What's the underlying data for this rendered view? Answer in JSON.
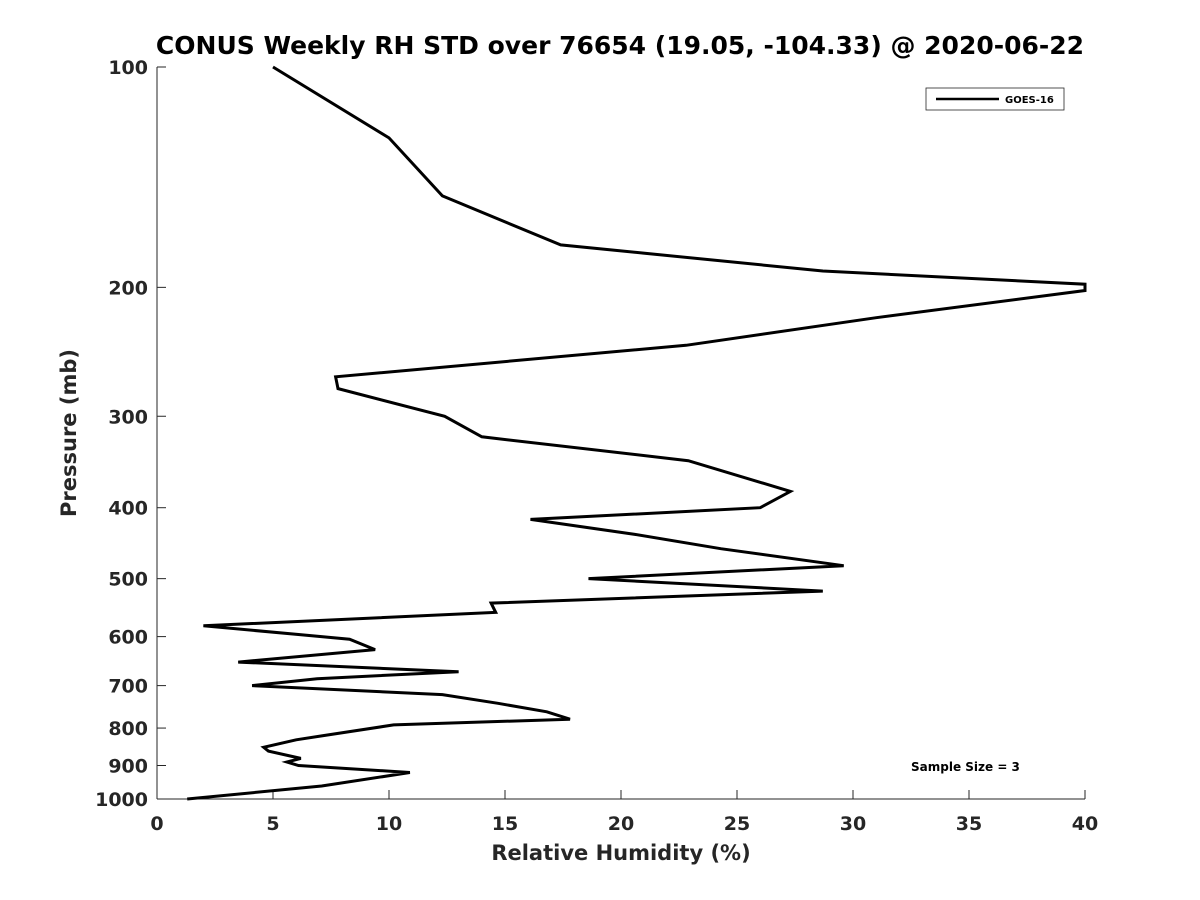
{
  "chart_data": {
    "type": "line",
    "title": "CONUS Weekly RH STD over 76654 (19.05, -104.33) @ 2020-06-22",
    "xlabel": "Relative Humidity (%)",
    "ylabel": "Pressure (mb)",
    "xlim": [
      0,
      40
    ],
    "ylim": [
      100,
      1000
    ],
    "yscale": "log",
    "yreversed": true,
    "xticks": [
      0,
      5,
      10,
      15,
      20,
      25,
      30,
      35,
      40
    ],
    "xtick_labels": [
      "0",
      "5",
      "10",
      "15",
      "20",
      "25",
      "30",
      "35",
      "40"
    ],
    "yticks": [
      100,
      200,
      300,
      400,
      500,
      600,
      700,
      800,
      900,
      1000
    ],
    "ytick_labels": [
      "100",
      "200",
      "300",
      "400",
      "500",
      "600",
      "700",
      "800",
      "900",
      "1000"
    ],
    "legend": {
      "location": "top-right",
      "entries": [
        "GOES-16"
      ]
    },
    "annotation": "Sample Size = 3",
    "series": [
      {
        "name": "GOES-16",
        "color": "#000000",
        "x": [
          5.0,
          10.0,
          12.3,
          17.4,
          28.7,
          40.0,
          40.0,
          31.0,
          22.8,
          7.7,
          7.8,
          12.4,
          14.0,
          22.9,
          27.3,
          26.0,
          16.1,
          20.6,
          24.3,
          29.6,
          18.6,
          28.7,
          14.4,
          14.6,
          2.0,
          8.3,
          9.4,
          3.5,
          13.0,
          6.9,
          4.1,
          12.3,
          14.7,
          16.8,
          17.8,
          10.2,
          7.1,
          6.0,
          4.6,
          4.8,
          6.2,
          5.6,
          6.1,
          10.9,
          7.1,
          1.3
        ],
        "y": [
          100,
          125,
          150,
          175,
          190,
          198,
          202,
          220,
          240,
          265,
          275,
          300,
          320,
          345,
          380,
          400,
          415,
          435,
          455,
          480,
          500,
          520,
          540,
          556,
          580,
          605,
          625,
          650,
          670,
          685,
          700,
          720,
          740,
          760,
          778,
          792,
          820,
          830,
          850,
          860,
          880,
          890,
          900,
          920,
          960,
          1000
        ]
      }
    ]
  }
}
